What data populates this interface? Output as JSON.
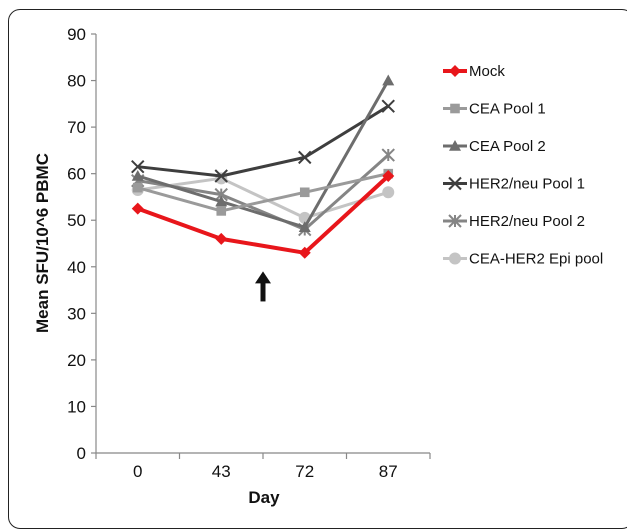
{
  "chart_data": {
    "type": "line",
    "xlabel": "Day",
    "ylabel": "Mean SFU/10^6  PBMC",
    "categories": [
      "0",
      "43",
      "72",
      "87"
    ],
    "ylim": [
      0,
      90
    ],
    "yticks": [
      "0",
      "10",
      "20",
      "30",
      "40",
      "50",
      "60",
      "70",
      "80",
      "90"
    ],
    "grid": false,
    "legend_position": "right",
    "annotation": {
      "type": "arrow-up",
      "between": [
        "43",
        "72"
      ],
      "value": 39
    },
    "series": [
      {
        "name": "Mock",
        "values": [
          52.5,
          46,
          43,
          59.5
        ],
        "color": "#e8161b",
        "marker": "diamond"
      },
      {
        "name": "CEA Pool 1",
        "values": [
          57,
          52,
          56,
          60
        ],
        "color": "#9a9a9a",
        "marker": "square"
      },
      {
        "name": "CEA Pool 2",
        "values": [
          59.5,
          54,
          48.5,
          80
        ],
        "color": "#6d6d6d",
        "marker": "triangle"
      },
      {
        "name": "HER2/neu Pool 1",
        "values": [
          61.5,
          59.5,
          63.5,
          74.5
        ],
        "color": "#3e3e3e",
        "marker": "x"
      },
      {
        "name": "HER2/neu Pool 2",
        "values": [
          58.5,
          55.5,
          48,
          64
        ],
        "color": "#858585",
        "marker": "star"
      },
      {
        "name": "CEA-HER2 Epi pool",
        "values": [
          56.5,
          59,
          50.5,
          56
        ],
        "color": "#c4c4c4",
        "marker": "circle"
      }
    ]
  }
}
